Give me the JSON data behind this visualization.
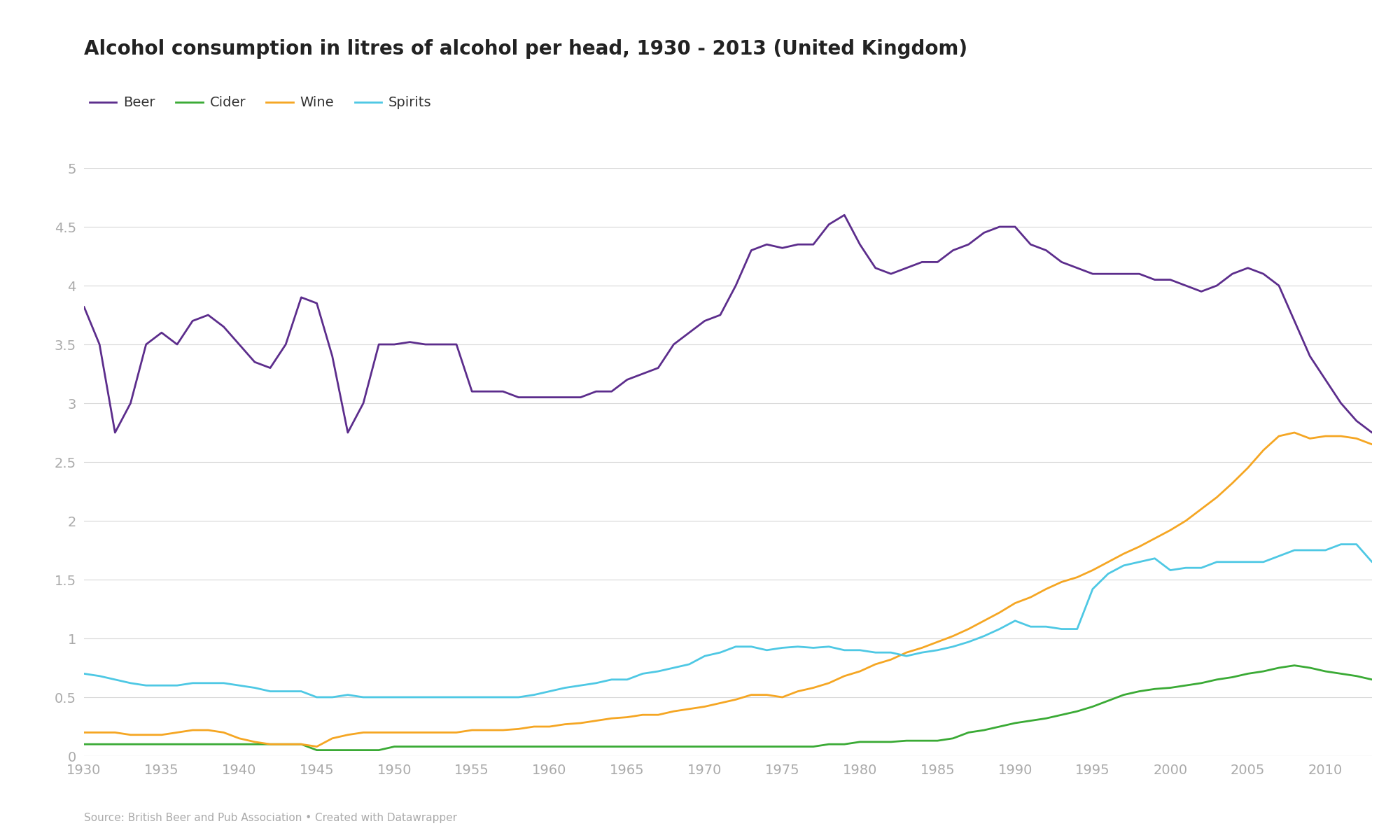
{
  "title": "Alcohol consumption in litres of alcohol per head, 1930 - 2013 (United Kingdom)",
  "source_text": "Source: British Beer and Pub Association • Created with Datawrapper",
  "series": {
    "Beer": {
      "color": "#5c2d8c",
      "years": [
        1930,
        1931,
        1932,
        1933,
        1934,
        1935,
        1936,
        1937,
        1938,
        1939,
        1940,
        1941,
        1942,
        1943,
        1944,
        1945,
        1946,
        1947,
        1948,
        1949,
        1950,
        1951,
        1952,
        1953,
        1954,
        1955,
        1956,
        1957,
        1958,
        1959,
        1960,
        1961,
        1962,
        1963,
        1964,
        1965,
        1966,
        1967,
        1968,
        1969,
        1970,
        1971,
        1972,
        1973,
        1974,
        1975,
        1976,
        1977,
        1978,
        1979,
        1980,
        1981,
        1982,
        1983,
        1984,
        1985,
        1986,
        1987,
        1988,
        1989,
        1990,
        1991,
        1992,
        1993,
        1994,
        1995,
        1996,
        1997,
        1998,
        1999,
        2000,
        2001,
        2002,
        2003,
        2004,
        2005,
        2006,
        2007,
        2008,
        2009,
        2010,
        2011,
        2012,
        2013
      ],
      "values": [
        3.82,
        3.5,
        2.75,
        3.0,
        3.5,
        3.6,
        3.5,
        3.7,
        3.75,
        3.65,
        3.5,
        3.35,
        3.3,
        3.5,
        3.9,
        3.85,
        3.4,
        2.75,
        3.0,
        3.5,
        3.5,
        3.52,
        3.5,
        3.5,
        3.5,
        3.1,
        3.1,
        3.1,
        3.05,
        3.05,
        3.05,
        3.05,
        3.05,
        3.1,
        3.1,
        3.2,
        3.25,
        3.3,
        3.5,
        3.6,
        3.7,
        3.75,
        4.0,
        4.3,
        4.35,
        4.32,
        4.35,
        4.35,
        4.52,
        4.6,
        4.35,
        4.15,
        4.1,
        4.15,
        4.2,
        4.2,
        4.3,
        4.35,
        4.45,
        4.5,
        4.5,
        4.35,
        4.3,
        4.2,
        4.15,
        4.1,
        4.1,
        4.1,
        4.1,
        4.05,
        4.05,
        4.0,
        3.95,
        4.0,
        4.1,
        4.15,
        4.1,
        4.0,
        3.7,
        3.4,
        3.2,
        3.0,
        2.85,
        2.75
      ]
    },
    "Cider": {
      "color": "#3aaa35",
      "years": [
        1930,
        1931,
        1932,
        1933,
        1934,
        1935,
        1936,
        1937,
        1938,
        1939,
        1940,
        1941,
        1942,
        1943,
        1944,
        1945,
        1946,
        1947,
        1948,
        1949,
        1950,
        1951,
        1952,
        1953,
        1954,
        1955,
        1956,
        1957,
        1958,
        1959,
        1960,
        1961,
        1962,
        1963,
        1964,
        1965,
        1966,
        1967,
        1968,
        1969,
        1970,
        1971,
        1972,
        1973,
        1974,
        1975,
        1976,
        1977,
        1978,
        1979,
        1980,
        1981,
        1982,
        1983,
        1984,
        1985,
        1986,
        1987,
        1988,
        1989,
        1990,
        1991,
        1992,
        1993,
        1994,
        1995,
        1996,
        1997,
        1998,
        1999,
        2000,
        2001,
        2002,
        2003,
        2004,
        2005,
        2006,
        2007,
        2008,
        2009,
        2010,
        2011,
        2012,
        2013
      ],
      "values": [
        0.1,
        0.1,
        0.1,
        0.1,
        0.1,
        0.1,
        0.1,
        0.1,
        0.1,
        0.1,
        0.1,
        0.1,
        0.1,
        0.1,
        0.1,
        0.05,
        0.05,
        0.05,
        0.05,
        0.05,
        0.08,
        0.08,
        0.08,
        0.08,
        0.08,
        0.08,
        0.08,
        0.08,
        0.08,
        0.08,
        0.08,
        0.08,
        0.08,
        0.08,
        0.08,
        0.08,
        0.08,
        0.08,
        0.08,
        0.08,
        0.08,
        0.08,
        0.08,
        0.08,
        0.08,
        0.08,
        0.08,
        0.08,
        0.1,
        0.1,
        0.12,
        0.12,
        0.12,
        0.13,
        0.13,
        0.13,
        0.15,
        0.2,
        0.22,
        0.25,
        0.28,
        0.3,
        0.32,
        0.35,
        0.38,
        0.42,
        0.47,
        0.52,
        0.55,
        0.57,
        0.58,
        0.6,
        0.62,
        0.65,
        0.67,
        0.7,
        0.72,
        0.75,
        0.77,
        0.75,
        0.72,
        0.7,
        0.68,
        0.65
      ]
    },
    "Wine": {
      "color": "#f5a623",
      "years": [
        1930,
        1931,
        1932,
        1933,
        1934,
        1935,
        1936,
        1937,
        1938,
        1939,
        1940,
        1941,
        1942,
        1943,
        1944,
        1945,
        1946,
        1947,
        1948,
        1949,
        1950,
        1951,
        1952,
        1953,
        1954,
        1955,
        1956,
        1957,
        1958,
        1959,
        1960,
        1961,
        1962,
        1963,
        1964,
        1965,
        1966,
        1967,
        1968,
        1969,
        1970,
        1971,
        1972,
        1973,
        1974,
        1975,
        1976,
        1977,
        1978,
        1979,
        1980,
        1981,
        1982,
        1983,
        1984,
        1985,
        1986,
        1987,
        1988,
        1989,
        1990,
        1991,
        1992,
        1993,
        1994,
        1995,
        1996,
        1997,
        1998,
        1999,
        2000,
        2001,
        2002,
        2003,
        2004,
        2005,
        2006,
        2007,
        2008,
        2009,
        2010,
        2011,
        2012,
        2013
      ],
      "values": [
        0.2,
        0.2,
        0.2,
        0.18,
        0.18,
        0.18,
        0.2,
        0.22,
        0.22,
        0.2,
        0.15,
        0.12,
        0.1,
        0.1,
        0.1,
        0.08,
        0.15,
        0.18,
        0.2,
        0.2,
        0.2,
        0.2,
        0.2,
        0.2,
        0.2,
        0.22,
        0.22,
        0.22,
        0.23,
        0.25,
        0.25,
        0.27,
        0.28,
        0.3,
        0.32,
        0.33,
        0.35,
        0.35,
        0.38,
        0.4,
        0.42,
        0.45,
        0.48,
        0.52,
        0.52,
        0.5,
        0.55,
        0.58,
        0.62,
        0.68,
        0.72,
        0.78,
        0.82,
        0.88,
        0.92,
        0.97,
        1.02,
        1.08,
        1.15,
        1.22,
        1.3,
        1.35,
        1.42,
        1.48,
        1.52,
        1.58,
        1.65,
        1.72,
        1.78,
        1.85,
        1.92,
        2.0,
        2.1,
        2.2,
        2.32,
        2.45,
        2.6,
        2.72,
        2.75,
        2.7,
        2.72,
        2.72,
        2.7,
        2.65
      ]
    },
    "Spirits": {
      "color": "#4ec8e4",
      "years": [
        1930,
        1931,
        1932,
        1933,
        1934,
        1935,
        1936,
        1937,
        1938,
        1939,
        1940,
        1941,
        1942,
        1943,
        1944,
        1945,
        1946,
        1947,
        1948,
        1949,
        1950,
        1951,
        1952,
        1953,
        1954,
        1955,
        1956,
        1957,
        1958,
        1959,
        1960,
        1961,
        1962,
        1963,
        1964,
        1965,
        1966,
        1967,
        1968,
        1969,
        1970,
        1971,
        1972,
        1973,
        1974,
        1975,
        1976,
        1977,
        1978,
        1979,
        1980,
        1981,
        1982,
        1983,
        1984,
        1985,
        1986,
        1987,
        1988,
        1989,
        1990,
        1991,
        1992,
        1993,
        1994,
        1995,
        1996,
        1997,
        1998,
        1999,
        2000,
        2001,
        2002,
        2003,
        2004,
        2005,
        2006,
        2007,
        2008,
        2009,
        2010,
        2011,
        2012,
        2013
      ],
      "values": [
        0.7,
        0.68,
        0.65,
        0.62,
        0.6,
        0.6,
        0.6,
        0.62,
        0.62,
        0.62,
        0.6,
        0.58,
        0.55,
        0.55,
        0.55,
        0.5,
        0.5,
        0.52,
        0.5,
        0.5,
        0.5,
        0.5,
        0.5,
        0.5,
        0.5,
        0.5,
        0.5,
        0.5,
        0.5,
        0.52,
        0.55,
        0.58,
        0.6,
        0.62,
        0.65,
        0.65,
        0.7,
        0.72,
        0.75,
        0.78,
        0.85,
        0.88,
        0.93,
        0.93,
        0.9,
        0.92,
        0.93,
        0.92,
        0.93,
        0.9,
        0.9,
        0.88,
        0.88,
        0.85,
        0.88,
        0.9,
        0.93,
        0.97,
        1.02,
        1.08,
        1.15,
        1.1,
        1.1,
        1.08,
        1.08,
        1.42,
        1.55,
        1.62,
        1.65,
        1.68,
        1.58,
        1.6,
        1.6,
        1.65,
        1.65,
        1.65,
        1.65,
        1.7,
        1.75,
        1.75,
        1.75,
        1.8,
        1.8,
        1.65
      ]
    }
  },
  "ylim": [
    0,
    5
  ],
  "yticks": [
    0,
    0.5,
    1.0,
    1.5,
    2.0,
    2.5,
    3.0,
    3.5,
    4.0,
    4.5,
    5.0
  ],
  "xtick_years": [
    1930,
    1935,
    1940,
    1945,
    1950,
    1955,
    1960,
    1965,
    1970,
    1975,
    1980,
    1985,
    1990,
    1995,
    2000,
    2005,
    2010
  ],
  "background_color": "#ffffff",
  "grid_color": "#d8d8d8",
  "tick_label_color": "#aaaaaa",
  "title_color": "#222222",
  "legend_label_color": "#333333"
}
